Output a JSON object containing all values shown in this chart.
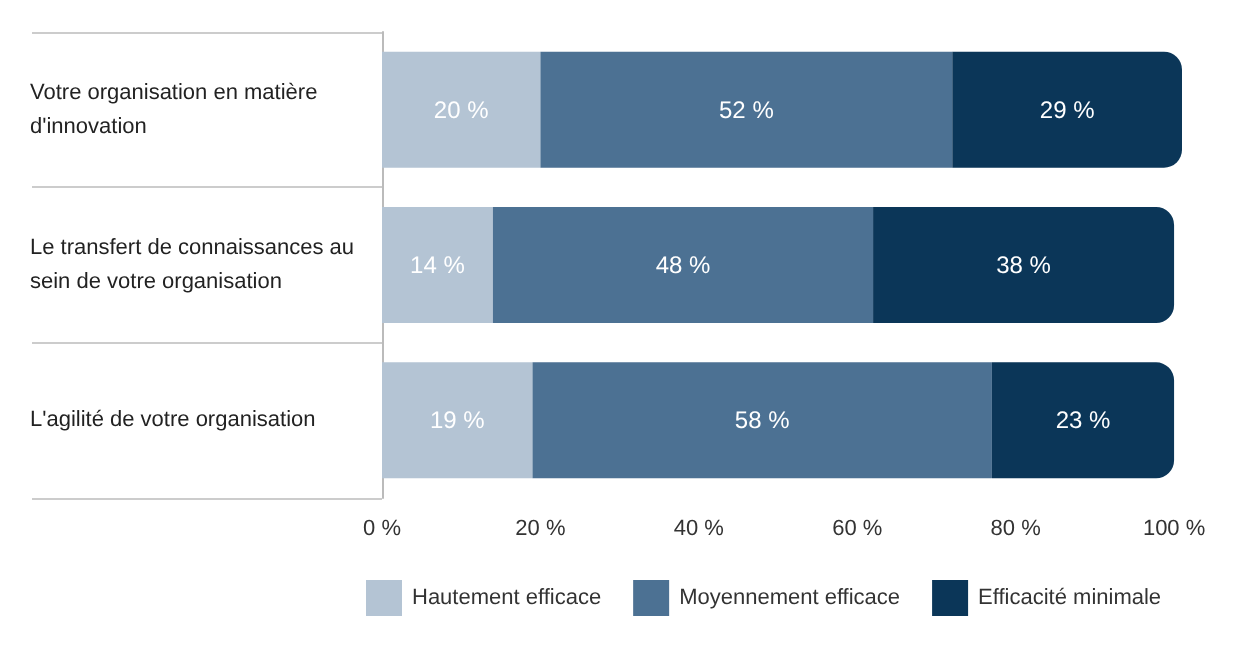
{
  "chart_data": {
    "type": "bar",
    "orientation": "horizontal",
    "stacked": true,
    "categories": [
      "Votre organisation en matière d'innovation",
      "Le transfert de connaissances au sein de votre organisation",
      "L'agilité de votre organisation"
    ],
    "series": [
      {
        "name": "Hautement efficace",
        "color": "#b4c4d4",
        "values": [
          20,
          14,
          19
        ],
        "value_labels": [
          "20 %",
          "14 %",
          "19 %"
        ]
      },
      {
        "name": "Moyennement efficace",
        "color": "#4c7193",
        "values": [
          52,
          48,
          58
        ],
        "value_labels": [
          "52 %",
          "48 %",
          "58 %"
        ]
      },
      {
        "name": "Efficacité minimale",
        "color": "#0b3658",
        "values": [
          29,
          38,
          23
        ],
        "value_labels": [
          "29 %",
          "38 %",
          "23 %"
        ]
      }
    ],
    "xlim": [
      0,
      101
    ],
    "xticks": [
      {
        "value": 0,
        "label": "0 %"
      },
      {
        "value": 20,
        "label": "20 %"
      },
      {
        "value": 40,
        "label": "40 %"
      },
      {
        "value": 60,
        "label": "60 %"
      },
      {
        "value": 80,
        "label": "80 %"
      },
      {
        "value": 100,
        "label": "100 %"
      }
    ],
    "grid": false,
    "legend": "bottom left"
  }
}
